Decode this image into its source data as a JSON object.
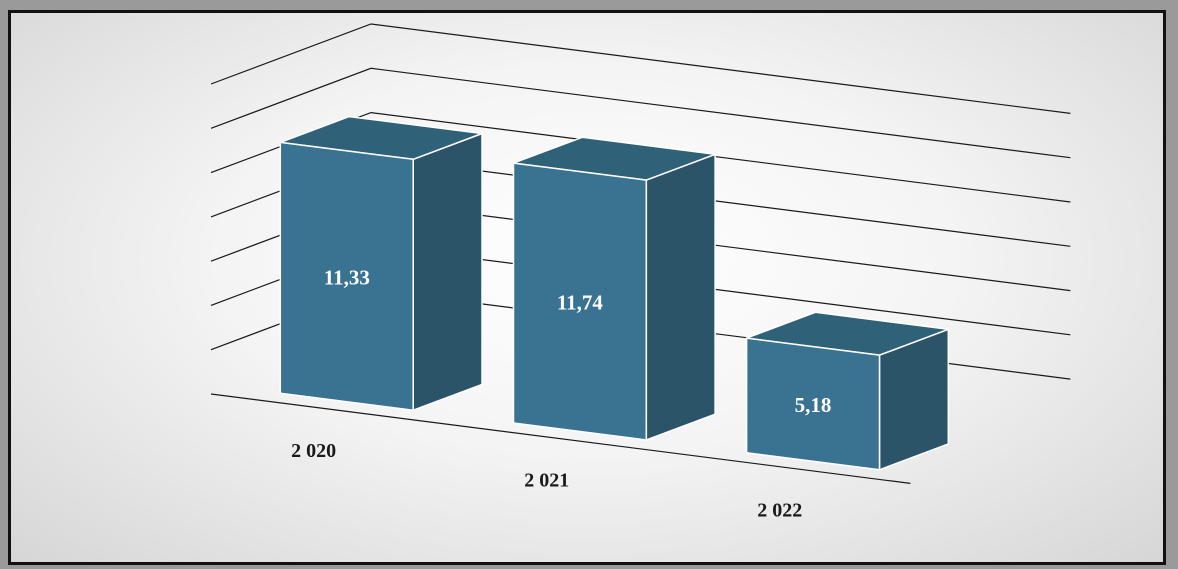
{
  "chart_data": {
    "type": "bar",
    "categories": [
      "2 020",
      "2 021",
      "2 022"
    ],
    "values": [
      11.33,
      11.74,
      5.18
    ],
    "data_labels": [
      "11,33",
      "11,74",
      "5,18"
    ],
    "title": "",
    "xlabel": "",
    "ylabel": "",
    "ylim": [
      0,
      14
    ],
    "grid": true,
    "legend": "none",
    "three_d": true
  },
  "colors": {
    "bar_front": "#3a7391",
    "bar_side": "#2b5468",
    "bar_top": "#2f6178",
    "bar_edge": "#ffffff",
    "gridline": "#1a1a1a",
    "label": "#ffffff",
    "category_text": "#1a1a1a"
  }
}
